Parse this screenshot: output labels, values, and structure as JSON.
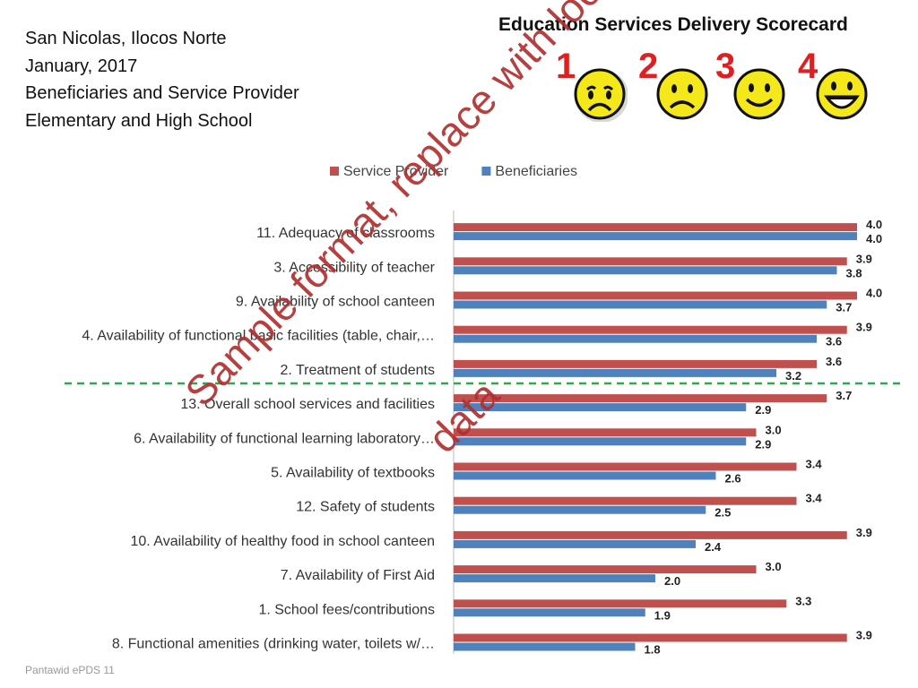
{
  "header": {
    "location": "San Nicolas, Ilocos Norte",
    "date": "January, 2017",
    "subtitle1": "Beneficiaries and Service Provider",
    "subtitle2": "Elementary and High School"
  },
  "scorecard": {
    "title": "Education Services Delivery Scorecard",
    "ratings": [
      {
        "number": "1",
        "icon": "crying-face-icon"
      },
      {
        "number": "2",
        "icon": "sad-face-icon"
      },
      {
        "number": "3",
        "icon": "smiling-face-icon"
      },
      {
        "number": "4",
        "icon": "grinning-face-icon"
      }
    ]
  },
  "watermark": {
    "line1": "Sample format, replace with local",
    "line2": "data"
  },
  "footer": "Pantawid ePDS 11",
  "colors": {
    "service_provider": "#c0504d",
    "beneficiaries": "#4f81bd",
    "threshold_line": "#2eaa4a"
  },
  "chart_data": {
    "type": "bar",
    "orientation": "horizontal",
    "title": "",
    "xlabel": "",
    "ylabel": "",
    "xlim": [
      0,
      4
    ],
    "grid": false,
    "legend_position": "top",
    "categories": [
      "11. Adequacy of classrooms",
      "3. Accessibility of teacher",
      "9. Availability of school canteen",
      "4. Availability of functional basic facilities (table, chair,…",
      "2. Treatment of students",
      "13. Overall school services and facilities",
      "6. Availability of functional learning laboratory…",
      "5. Availability of textbooks",
      "12. Safety of students",
      "10. Availability of healthy food in school canteen",
      "7. Availability of First Aid",
      "1. School fees/contributions",
      "8. Functional amenities (drinking water, toilets w/…"
    ],
    "series": [
      {
        "name": "Service Provider",
        "values": [
          4.0,
          3.9,
          4.0,
          3.9,
          3.6,
          3.7,
          3.0,
          3.4,
          3.4,
          3.9,
          3.0,
          3.3,
          3.9
        ]
      },
      {
        "name": "Beneficiaries",
        "values": [
          4.0,
          3.8,
          3.7,
          3.6,
          3.2,
          2.9,
          2.9,
          2.6,
          2.5,
          2.4,
          2.0,
          1.9,
          1.8
        ]
      }
    ],
    "threshold_after_category": "2. Treatment of students"
  }
}
